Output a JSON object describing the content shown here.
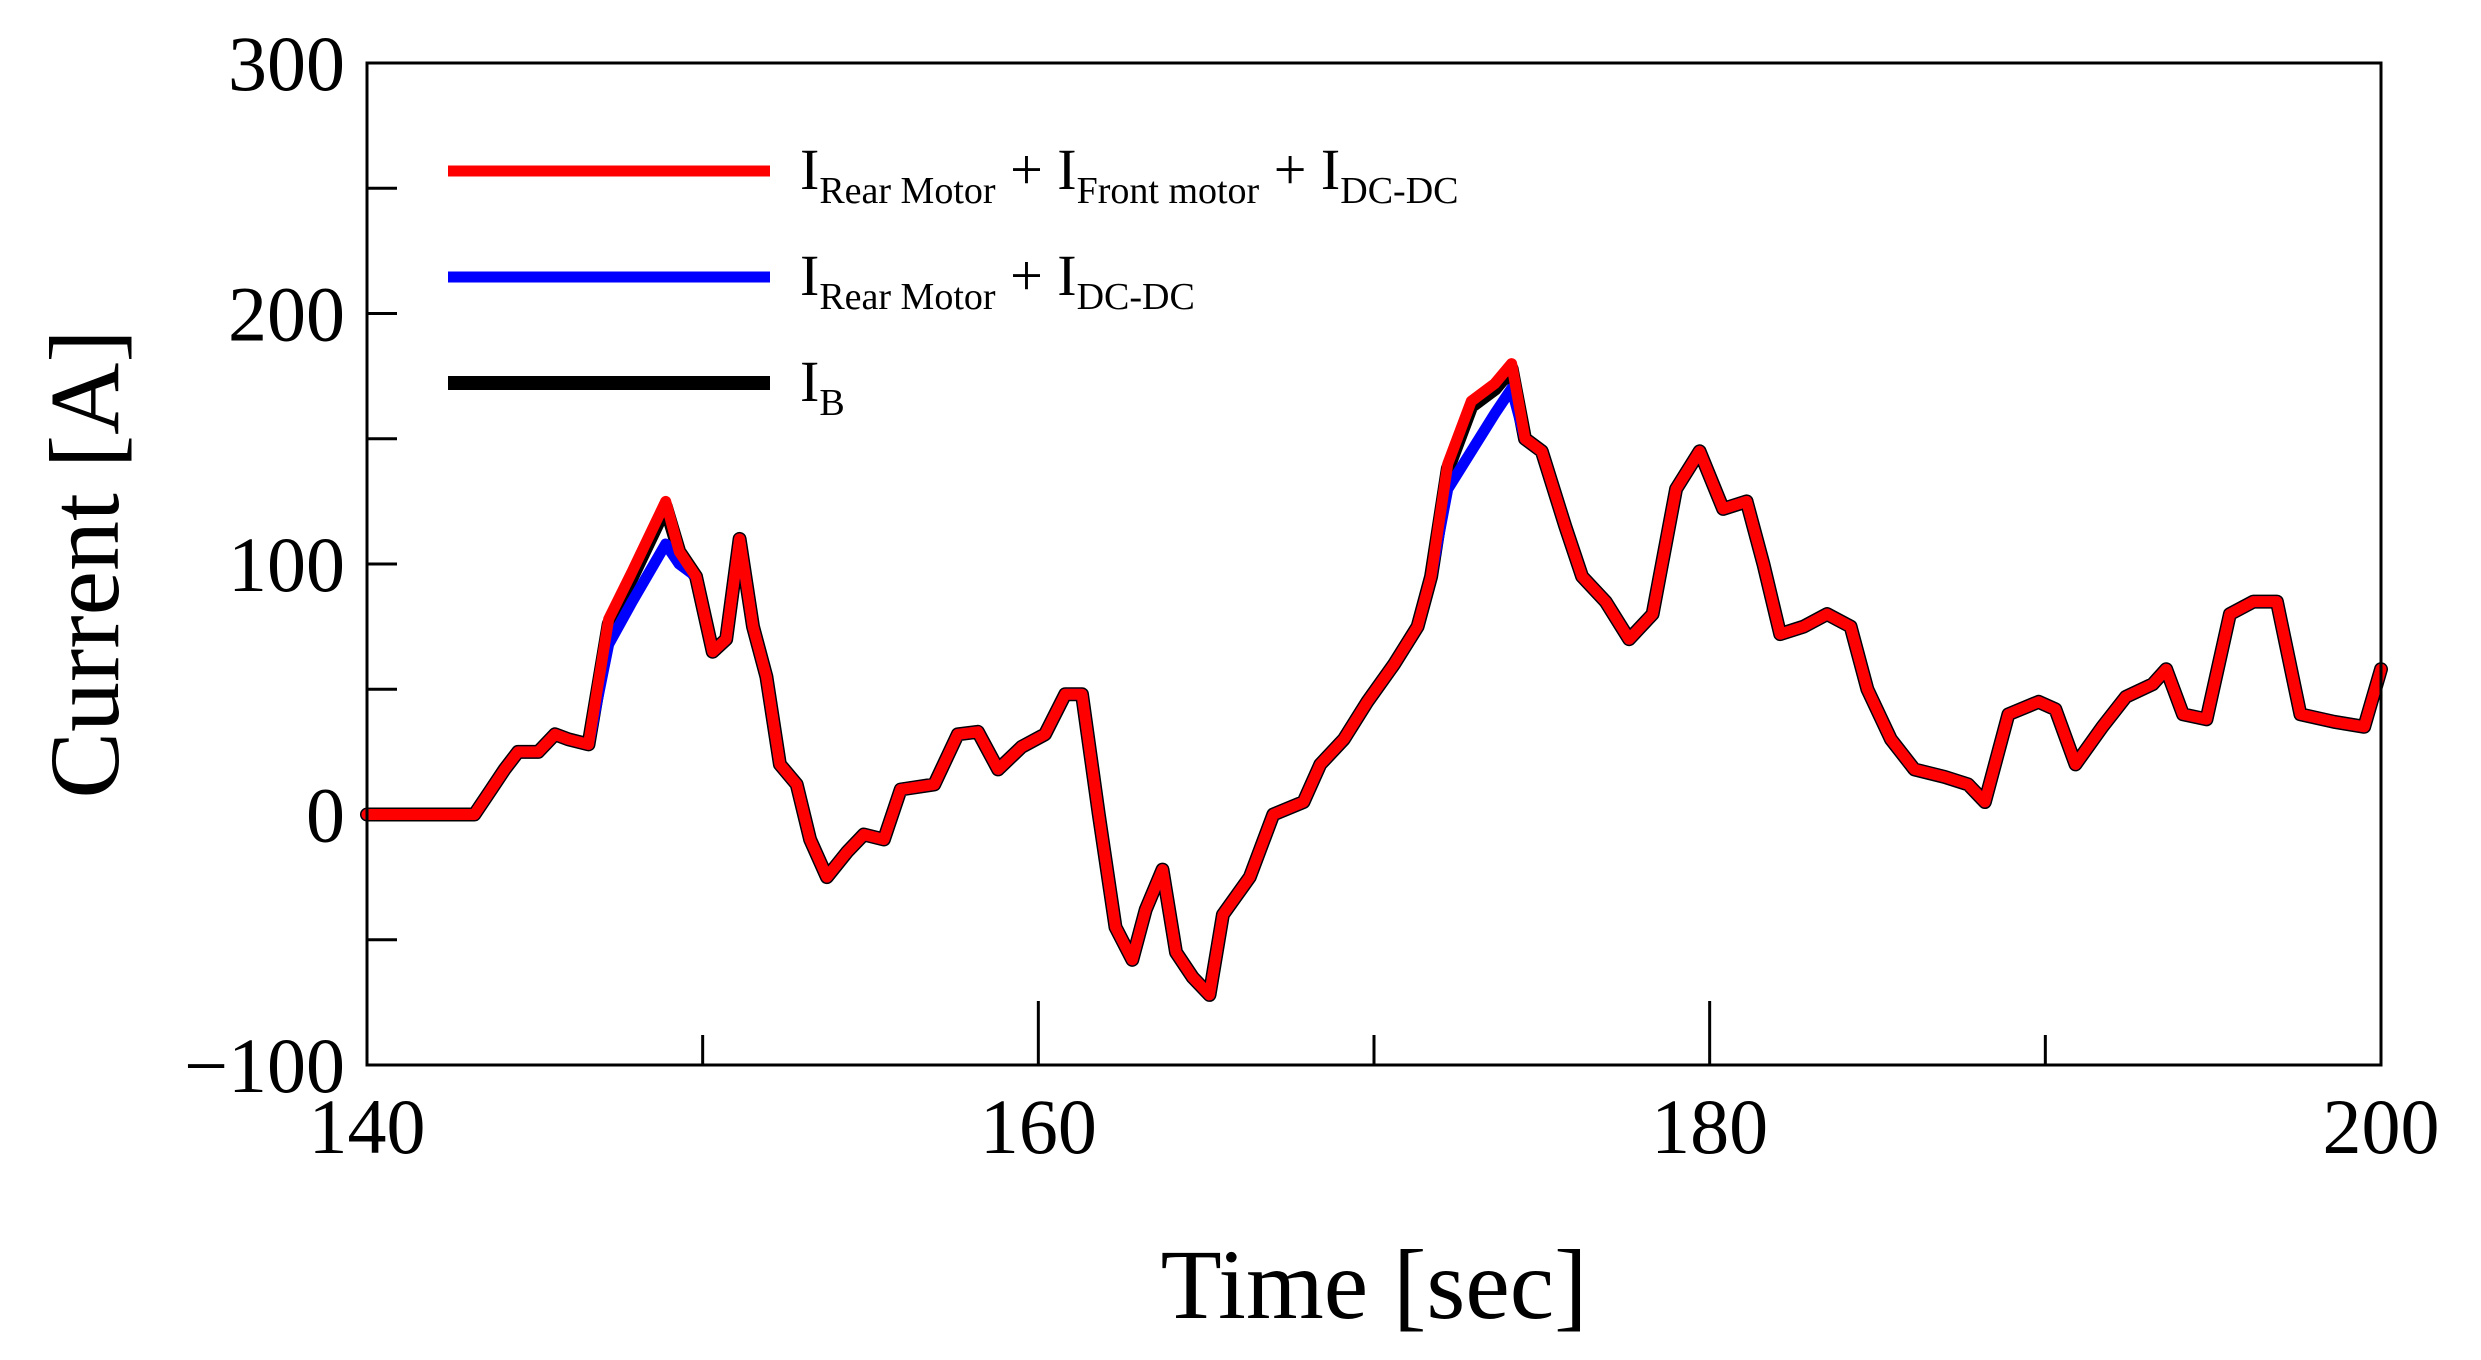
{
  "chart_data": {
    "type": "line",
    "xlabel": "Time [sec]",
    "ylabel": "Current [A]",
    "xlim": [
      140,
      200
    ],
    "xticks": [
      140,
      160,
      180,
      200
    ],
    "xticks_minor": [
      150,
      170,
      190
    ],
    "ylim": [
      -100,
      300
    ],
    "yticks": [
      {
        "value": -100,
        "label": "−100"
      },
      0,
      100,
      200,
      300
    ],
    "yticks_minor": [
      -50,
      50,
      150,
      250
    ],
    "legend": "upper left",
    "x": [
      140,
      143,
      143.2,
      143.7,
      144.1,
      144.5,
      145.1,
      145.6,
      146,
      146.6,
      147.2,
      147.9,
      148.9,
      149.3,
      149.8,
      150.3,
      150.7,
      151.1,
      151.5,
      151.9,
      152.3,
      152.8,
      153.2,
      153.7,
      154.3,
      154.8,
      155.4,
      155.9,
      156.9,
      157.6,
      158.2,
      158.8,
      159.5,
      160.2,
      160.8,
      161.3,
      161.8,
      162.3,
      162.8,
      163.2,
      163.7,
      164.1,
      164.6,
      165.1,
      165.5,
      166.3,
      167,
      167.9,
      168.4,
      169.1,
      169.8,
      170.6,
      171.3,
      171.7,
      172.2,
      172.9,
      173.6,
      174.1,
      174.5,
      175,
      175.7,
      176.2,
      176.9,
      177.6,
      178.3,
      179,
      179.7,
      180.4,
      181.1,
      181.6,
      182.1,
      182.8,
      183.5,
      184.2,
      184.7,
      185.4,
      186.1,
      187,
      187.7,
      188.2,
      188.9,
      189.8,
      190.3,
      190.9,
      191.7,
      192.4,
      193.2,
      193.6,
      194.1,
      194.8,
      195.5,
      196.2,
      196.9,
      197.6,
      198.6,
      199.5,
      200
    ],
    "series": [
      {
        "name": [
          {
            "text": "I"
          },
          {
            "sub": "Rear Motor"
          },
          {
            "text": " + I"
          },
          {
            "sub": "Front motor"
          },
          {
            "text": " + I"
          },
          {
            "sub": "DC-DC"
          }
        ],
        "color": "#ff0000",
        "width": 11,
        "values": [
          0,
          0,
          0,
          10,
          18,
          25,
          25,
          32,
          30,
          28,
          78,
          97,
          125,
          105,
          95,
          65,
          70,
          110,
          75,
          55,
          20,
          12,
          -10,
          -25,
          -15,
          -8,
          -10,
          10,
          12,
          32,
          33,
          18,
          27,
          32,
          48,
          48,
          0,
          -45,
          -58,
          -38,
          -22,
          -55,
          -65,
          -72,
          -40,
          -25,
          0,
          5,
          20,
          30,
          45,
          60,
          75,
          95,
          140,
          165,
          172,
          180,
          150,
          145,
          115,
          95,
          85,
          70,
          80,
          130,
          145,
          122,
          125,
          100,
          72,
          75,
          80,
          75,
          50,
          30,
          18,
          15,
          12,
          5,
          40,
          45,
          42,
          20,
          35,
          47,
          52,
          58,
          40,
          38,
          80,
          85,
          85,
          40,
          37,
          35,
          58
        ]
      },
      {
        "name": [
          {
            "text": "I"
          },
          {
            "sub": "Rear Motor"
          },
          {
            "text": " + I"
          },
          {
            "sub": "DC-DC"
          }
        ],
        "color": "#0000ff",
        "width": 11,
        "values": [
          0,
          0,
          0,
          10,
          18,
          25,
          25,
          32,
          30,
          28,
          68,
          85,
          108,
          100,
          95,
          65,
          70,
          110,
          75,
          55,
          20,
          12,
          -10,
          -25,
          -15,
          -8,
          -10,
          10,
          12,
          32,
          33,
          18,
          27,
          32,
          48,
          48,
          0,
          -45,
          -58,
          -38,
          -22,
          -55,
          -65,
          -72,
          -40,
          -25,
          0,
          5,
          20,
          30,
          45,
          60,
          75,
          95,
          130,
          145,
          160,
          170,
          150,
          145,
          115,
          95,
          85,
          70,
          80,
          130,
          145,
          122,
          125,
          100,
          72,
          75,
          80,
          75,
          50,
          30,
          18,
          15,
          12,
          5,
          40,
          45,
          42,
          20,
          35,
          47,
          52,
          58,
          40,
          38,
          80,
          85,
          85,
          40,
          37,
          35,
          58
        ]
      },
      {
        "name": [
          {
            "text": "I"
          },
          {
            "sub": "B"
          }
        ],
        "color": "#000000",
        "width": 14,
        "values": [
          0,
          0,
          0,
          10,
          18,
          25,
          25,
          32,
          30,
          28,
          76,
          95,
          123,
          105,
          95,
          65,
          70,
          110,
          75,
          55,
          20,
          12,
          -10,
          -25,
          -15,
          -8,
          -10,
          10,
          12,
          32,
          33,
          18,
          27,
          32,
          48,
          48,
          0,
          -45,
          -58,
          -38,
          -22,
          -55,
          -65,
          -72,
          -40,
          -25,
          0,
          5,
          20,
          30,
          45,
          60,
          75,
          95,
          138,
          163,
          170,
          178,
          150,
          145,
          115,
          95,
          85,
          70,
          80,
          130,
          145,
          122,
          125,
          100,
          72,
          75,
          80,
          75,
          50,
          30,
          18,
          15,
          12,
          5,
          40,
          45,
          42,
          20,
          35,
          47,
          52,
          58,
          40,
          38,
          80,
          85,
          85,
          40,
          37,
          35,
          58
        ]
      }
    ]
  }
}
